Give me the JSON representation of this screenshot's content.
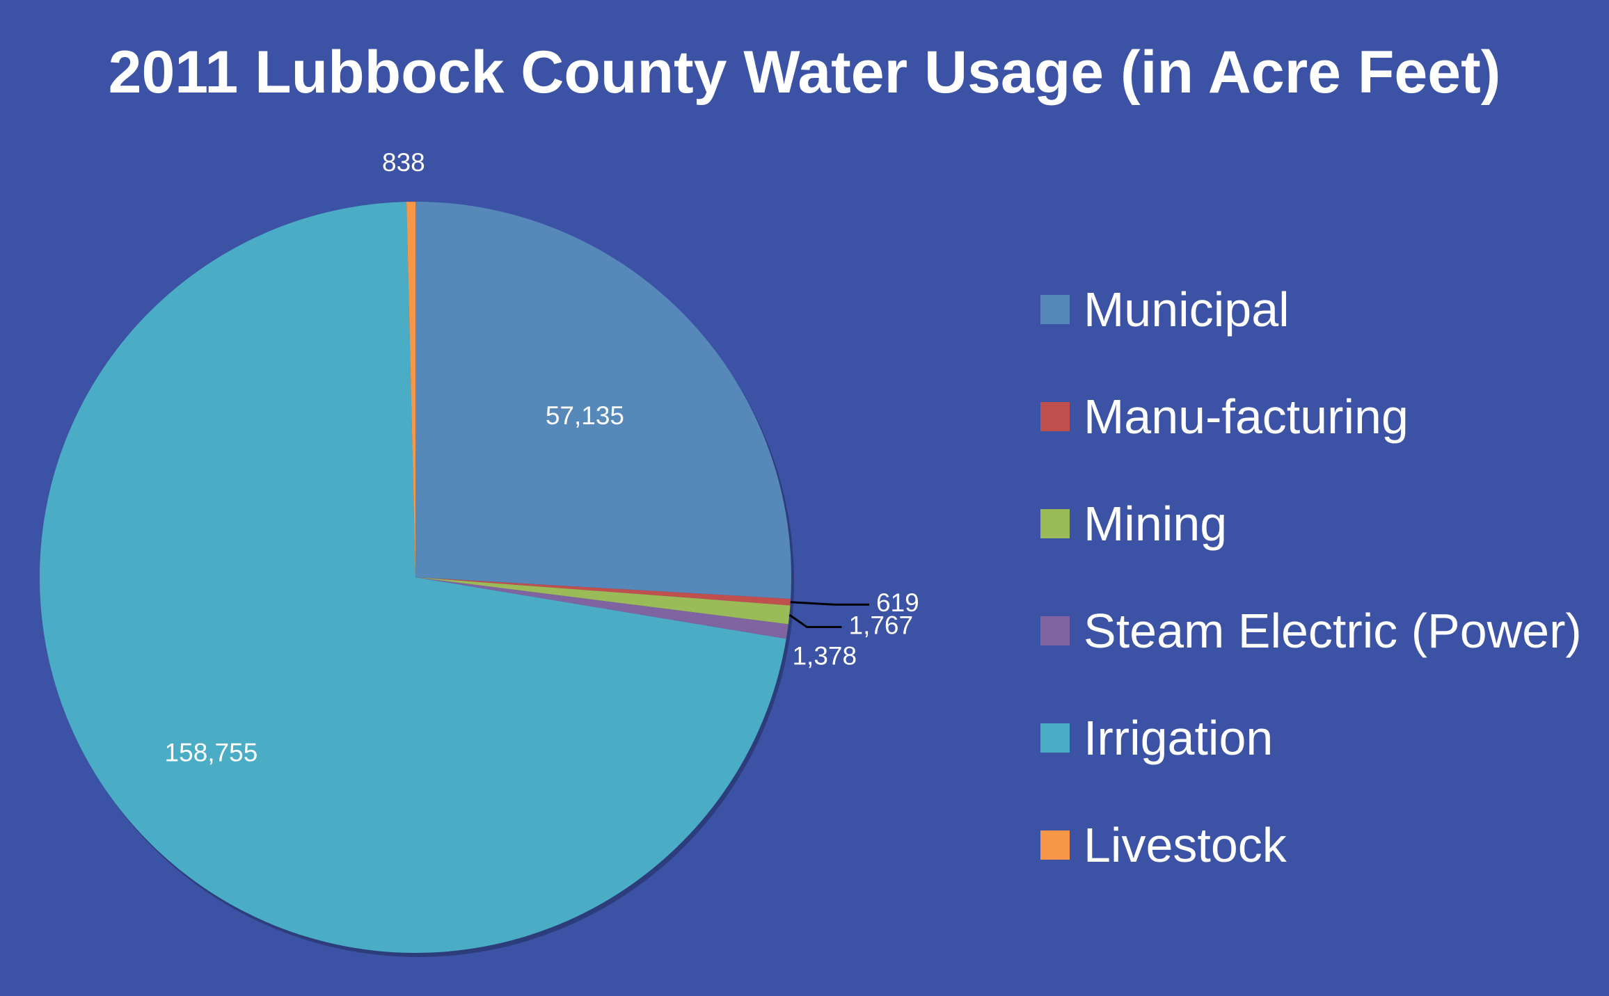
{
  "chart_data": {
    "type": "pie",
    "title": "2011 Lubbock County Water Usage (in Acre Feet)",
    "labels": [
      "Municipal",
      "Manu-facturing",
      "Mining",
      "Steam Electric (Power)",
      "Irrigation",
      "Livestock"
    ],
    "values": [
      57135,
      619,
      1767,
      1378,
      158755,
      838
    ],
    "value_labels": [
      "57,135",
      "619",
      "1,767",
      "1,378",
      "158,755",
      "838"
    ],
    "colors": [
      "#5788ba",
      "#c0504d",
      "#9bbb59",
      "#8064a2",
      "#4bacc6",
      "#f79646"
    ],
    "legend": "right",
    "start_angle": "12 o'clock",
    "direction": "clockwise"
  }
}
